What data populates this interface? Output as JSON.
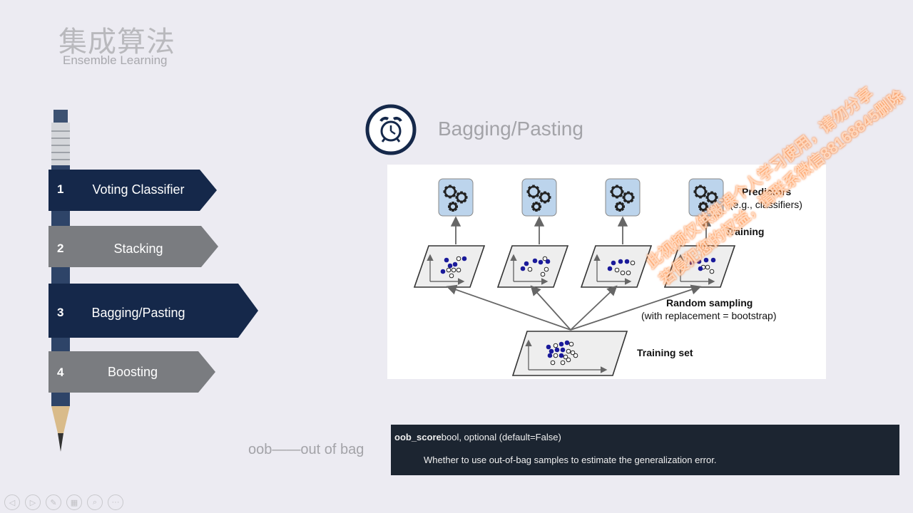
{
  "header": {
    "title_zh": "集成算法",
    "title_en": "Ensemble Learning"
  },
  "menu": [
    {
      "num": "1",
      "label": "Voting Classifier",
      "color": "#15284a"
    },
    {
      "num": "2",
      "label": "Stacking",
      "color": "#7a7c80"
    },
    {
      "num": "3",
      "label": "Bagging/Pasting",
      "color": "#15284a"
    },
    {
      "num": "4",
      "label": "Boosting",
      "color": "#7a7c80"
    }
  ],
  "section": {
    "title": "Bagging/Pasting",
    "icon": "alarm-clock-icon"
  },
  "diagram": {
    "predictors_label": "Predictors",
    "predictors_sub": "(e.g., classifiers)",
    "training_label": "Training",
    "sampling_label": "Random sampling",
    "sampling_sub": "(with replacement = bootstrap)",
    "training_set_label": "Training set"
  },
  "oob": {
    "label": "oob——out of bag"
  },
  "doc": {
    "param": "oob_score",
    "type": "bool, optional (default=False)",
    "desc": "Whether to use out-of-bag samples to estimate the generalization error."
  },
  "watermark": {
    "line1": "此视频仅供搬课个人学习使用，请勿分享",
    "line2": "若侵犯您的权益，请联系微信88168845删除"
  },
  "colors": {
    "navy": "#15284a",
    "gray": "#7a7c80",
    "dot": "#1a1a9a",
    "gear_box": "#bcd4ec"
  }
}
